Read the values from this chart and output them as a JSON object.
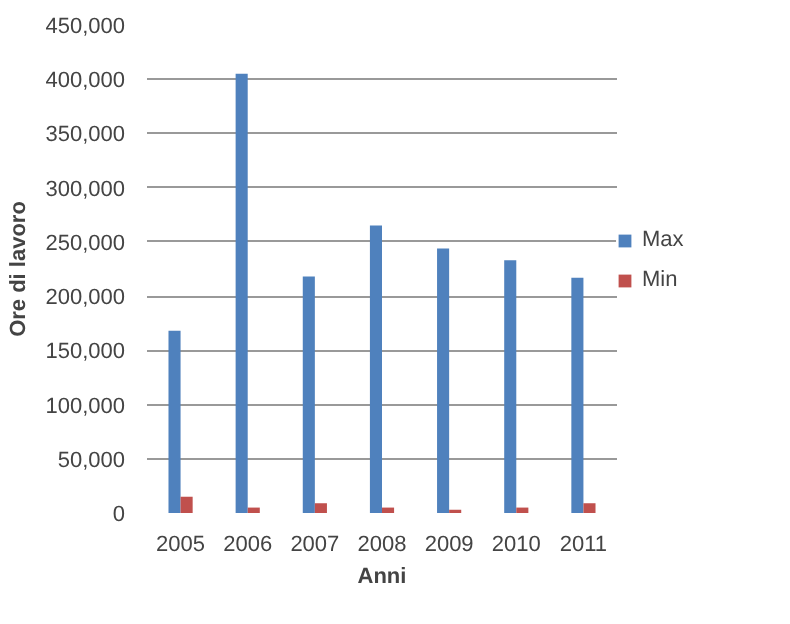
{
  "chart_data": {
    "type": "bar",
    "xlabel": "Anni",
    "ylabel": "Ore di lavoro",
    "categories": [
      "2005",
      "2006",
      "2007",
      "2008",
      "2009",
      "2010",
      "2011"
    ],
    "series": [
      {
        "name": "Max",
        "color": "#4f81bd",
        "values": [
          168000,
          405000,
          218000,
          265000,
          244000,
          233000,
          217000
        ]
      },
      {
        "name": "Min",
        "color": "#c0504d",
        "values": [
          15000,
          5000,
          9000,
          5000,
          3000,
          5000,
          9000
        ]
      }
    ],
    "ylim": [
      0,
      450000
    ],
    "yticks": [
      {
        "value": 0,
        "label": "0"
      },
      {
        "value": 50000,
        "label": "50,000"
      },
      {
        "value": 100000,
        "label": "100,000"
      },
      {
        "value": 150000,
        "label": "150,000"
      },
      {
        "value": 200000,
        "label": "200,000"
      },
      {
        "value": 250000,
        "label": "250,000"
      },
      {
        "value": 300000,
        "label": "300,000"
      },
      {
        "value": 350000,
        "label": "350,000"
      },
      {
        "value": 400000,
        "label": "400,000"
      },
      {
        "value": 450000,
        "label": "450,000"
      }
    ],
    "grid": "y",
    "legend": "right"
  }
}
